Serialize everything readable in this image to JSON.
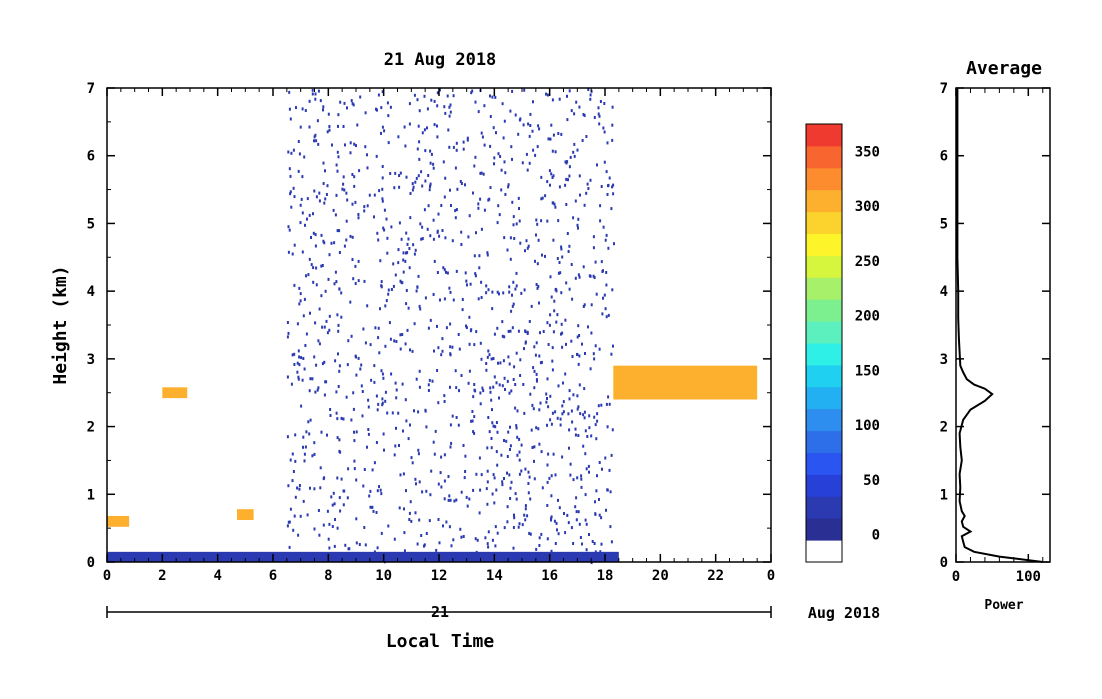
{
  "chart_data": [
    {
      "type": "heatmap",
      "title": "21 Aug 2018",
      "xlabel": "Local Time",
      "ylabel": "Height (km)",
      "xlim": [
        0,
        24
      ],
      "ylim": [
        0,
        7
      ],
      "x_ticks": [
        "0",
        "2",
        "4",
        "6",
        "8",
        "10",
        "12",
        "14",
        "16",
        "18",
        "20",
        "22",
        "0"
      ],
      "y_ticks": [
        "0",
        "1",
        "2",
        "3",
        "4",
        "5",
        "6",
        "7"
      ],
      "date_axis": {
        "day": "21",
        "month_label": "Aug 2018"
      },
      "colorbar": {
        "ticks": [
          "0",
          "50",
          "100",
          "150",
          "200",
          "250",
          "300",
          "350"
        ],
        "range": [
          -25,
          375
        ],
        "colors": [
          "#ffffff",
          "#2a2f93",
          "#2b3ab0",
          "#2740d8",
          "#2a55f0",
          "#2c6fe8",
          "#2e8ef0",
          "#23b0f2",
          "#1fd0f0",
          "#2ff0e6",
          "#5cf0bf",
          "#7cf08f",
          "#a6f06a",
          "#d6f53d",
          "#fdf52a",
          "#fcd22d",
          "#fdb02e",
          "#fc8c2e",
          "#f8652e",
          "#ef3a30"
        ]
      },
      "features": [
        {
          "name": "surface layer",
          "x": [
            0,
            18.5
          ],
          "height_km": [
            0,
            0.15
          ],
          "power": 20
        },
        {
          "name": "noise region",
          "x": [
            6.5,
            18.3
          ],
          "height_km": [
            0,
            7
          ],
          "power": 15
        },
        {
          "name": "layer 0.6 km",
          "x": [
            0,
            0.8
          ],
          "height_km": 0.6,
          "power": 300
        },
        {
          "name": "layer 2.5 km",
          "x": [
            2,
            2.9
          ],
          "height_km": 2.5,
          "power": 300
        },
        {
          "name": "layer 0.7 km",
          "x": [
            4.7,
            5.3
          ],
          "height_km": 0.7,
          "power": 300
        },
        {
          "name": "evening layer",
          "x": [
            18.3,
            23.5
          ],
          "height_km": [
            2.4,
            2.9
          ],
          "power": 300
        }
      ]
    },
    {
      "type": "line",
      "title": "Average",
      "xlabel": "Power",
      "xlim": [
        0,
        130
      ],
      "ylim": [
        0,
        7
      ],
      "x_ticks": [
        "0",
        "100"
      ],
      "y_ticks": [
        "0",
        "1",
        "2",
        "3",
        "4",
        "5",
        "6",
        "7"
      ],
      "x": [
        120,
        60,
        25,
        12,
        10,
        8,
        20,
        10,
        8,
        12,
        8,
        5,
        6,
        5,
        8,
        6,
        5,
        10,
        20,
        40,
        50,
        40,
        25,
        15,
        10,
        6,
        5,
        4,
        3,
        3,
        2,
        2,
        2,
        2
      ],
      "y": [
        0,
        0.08,
        0.15,
        0.22,
        0.3,
        0.38,
        0.45,
        0.52,
        0.6,
        0.68,
        0.75,
        0.9,
        1.1,
        1.3,
        1.5,
        1.7,
        1.9,
        2.1,
        2.25,
        2.38,
        2.48,
        2.56,
        2.62,
        2.7,
        2.8,
        2.9,
        3.1,
        3.3,
        3.6,
        4,
        4.5,
        5.2,
        6,
        7
      ]
    }
  ]
}
